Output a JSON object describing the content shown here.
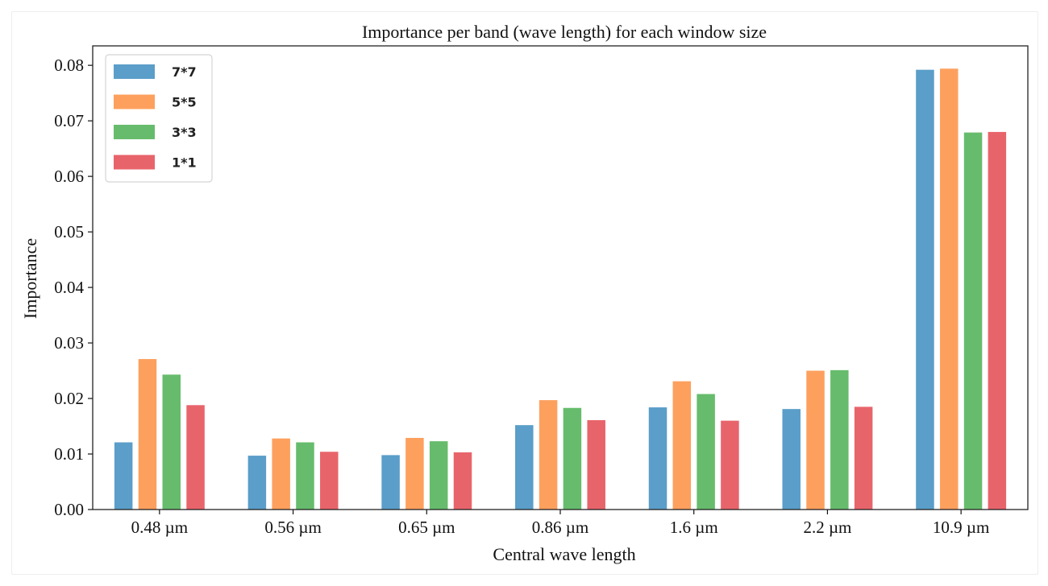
{
  "chart_data": {
    "type": "bar",
    "title": "Importance per band (wave length) for each window size",
    "xlabel": "Central wave length",
    "ylabel": "Importance",
    "ylim": [
      0,
      0.0835
    ],
    "yticks": [
      "0.00",
      "0.01",
      "0.02",
      "0.03",
      "0.04",
      "0.05",
      "0.06",
      "0.07",
      "0.08"
    ],
    "categories": [
      "0.48 µm",
      "0.56 µm",
      "0.65 µm",
      "0.86 µm",
      "1.6 µm",
      "2.2 µm",
      "10.9 µm"
    ],
    "series": [
      {
        "name": "7*7",
        "color": "#5a9ec9",
        "values": [
          0.0121,
          0.0097,
          0.0098,
          0.0152,
          0.0184,
          0.0181,
          0.0792
        ]
      },
      {
        "name": "5*5",
        "color": "#fda05e",
        "values": [
          0.0271,
          0.0128,
          0.0129,
          0.0197,
          0.0231,
          0.025,
          0.0794
        ]
      },
      {
        "name": "3*3",
        "color": "#66bc6c",
        "values": [
          0.0243,
          0.0121,
          0.0123,
          0.0183,
          0.0208,
          0.0251,
          0.0679
        ]
      },
      {
        "name": "1*1",
        "color": "#e8646b",
        "values": [
          0.0188,
          0.0104,
          0.0103,
          0.0161,
          0.016,
          0.0185,
          0.068
        ]
      }
    ],
    "legend_position": "top-left",
    "grid": false
  }
}
